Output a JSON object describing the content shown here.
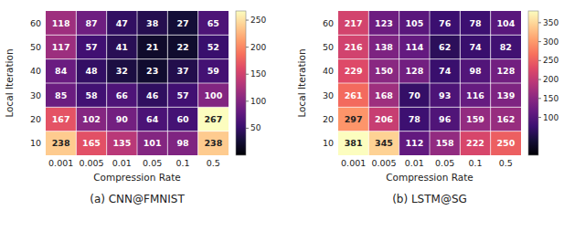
{
  "chart_data": [
    {
      "type": "heatmap",
      "title": "(a) CNN@FMNIST",
      "x_categories": [
        "0.001",
        "0.005",
        "0.01",
        "0.05",
        "0.1",
        "0.5"
      ],
      "y_categories": [
        "10",
        "20",
        "30",
        "40",
        "50",
        "60"
      ],
      "xlabel": "Compression Rate",
      "ylabel": "Local Iteration",
      "values": [
        [
          238,
          165,
          135,
          101,
          98,
          238
        ],
        [
          167,
          102,
          90,
          64,
          60,
          267
        ],
        [
          85,
          58,
          66,
          46,
          57,
          100
        ],
        [
          84,
          48,
          32,
          23,
          37,
          59
        ],
        [
          117,
          57,
          41,
          21,
          22,
          52
        ],
        [
          118,
          87,
          47,
          38,
          27,
          65
        ]
      ],
      "colorbar_range": [
        0,
        267
      ],
      "colorbar_ticks": [
        50,
        100,
        150,
        200,
        250
      ],
      "color": "magma",
      "data_labels": true,
      "grid": true
    },
    {
      "type": "heatmap",
      "title": "(b) LSTM@SG",
      "x_categories": [
        "0.001",
        "0.005",
        "0.01",
        "0.05",
        "0.1",
        "0.5"
      ],
      "y_categories": [
        "10",
        "20",
        "30",
        "40",
        "50",
        "60"
      ],
      "xlabel": "Compression Rate",
      "ylabel": "Local Iteration",
      "values": [
        [
          381,
          345,
          112,
          158,
          222,
          250
        ],
        [
          297,
          206,
          78,
          96,
          159,
          162
        ],
        [
          261,
          168,
          70,
          93,
          116,
          139
        ],
        [
          229,
          150,
          128,
          74,
          98,
          128
        ],
        [
          216,
          138,
          114,
          62,
          74,
          82
        ],
        [
          217,
          123,
          105,
          76,
          78,
          104
        ]
      ],
      "colorbar_range": [
        0,
        381
      ],
      "colorbar_ticks": [
        100,
        150,
        200,
        250,
        300,
        350
      ],
      "color": "magma",
      "data_labels": true,
      "grid": true
    }
  ]
}
